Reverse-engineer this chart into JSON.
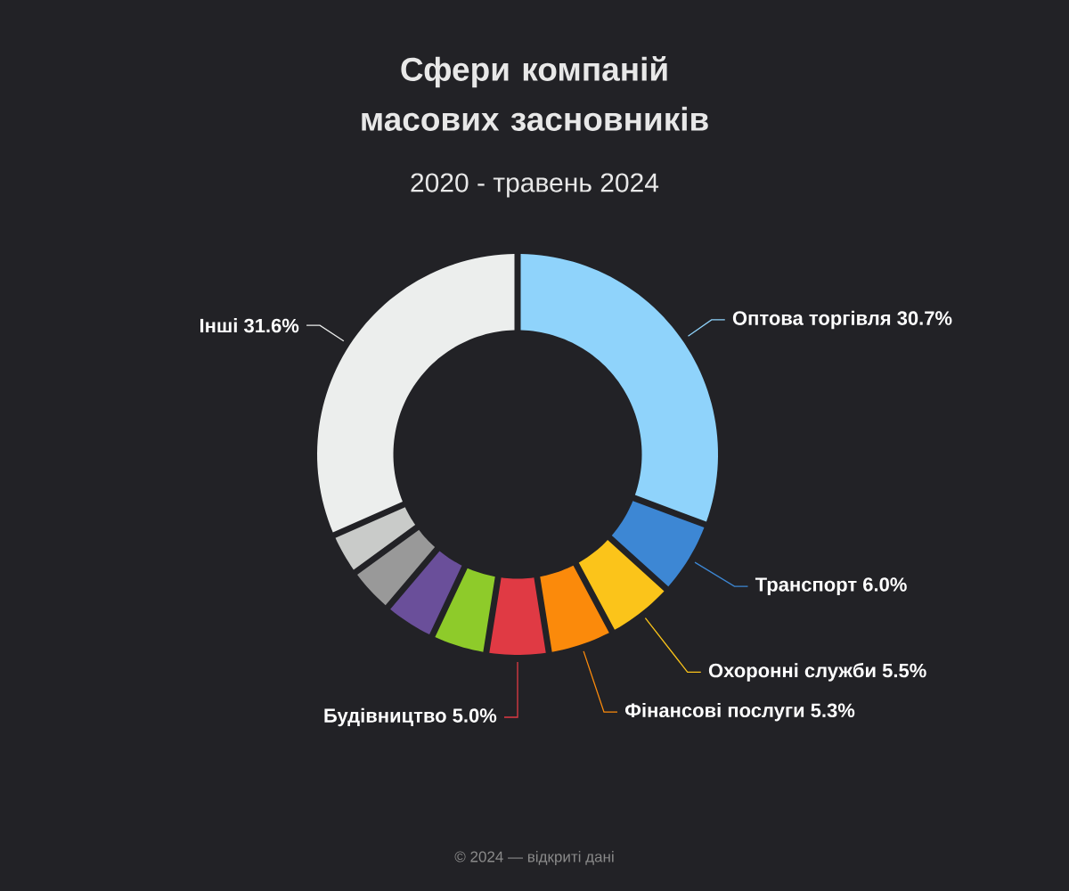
{
  "chart_data": {
    "type": "donut",
    "title": "Сфери компаній масових засновників",
    "subtitle": "2020 - травень 2024",
    "categories": [
      "Оптова торгівля",
      "Транспорт",
      "Охоронні служби",
      "Фінансові послуги",
      "Будівництво",
      null,
      null,
      null,
      null,
      "Інші"
    ],
    "values": [
      30.7,
      6.0,
      5.5,
      5.3,
      5.0,
      4.5,
      4.2,
      3.8,
      3.4,
      31.6
    ],
    "value_labels": [
      "30.7%",
      "6.0%",
      "5.5%",
      "5.3%",
      "5.0%",
      null,
      null,
      null,
      null,
      "31.6%"
    ],
    "colors": [
      "#8fd3fb",
      "#3d87d4",
      "#fbc41a",
      "#fb8a0b",
      "#e03a44",
      "#8ecb2a",
      "#6a4f9a",
      "#999999",
      "#c9cbc9",
      "#eceeed"
    ],
    "annotations": [
      "© 2024 — відкриті дані"
    ]
  }
}
